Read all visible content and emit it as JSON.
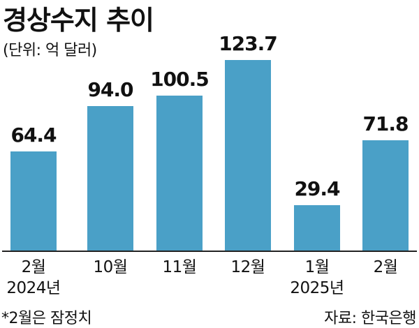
{
  "title": "경상수지 추이",
  "unit": "(단위: 억 달러)",
  "note": "*2월은 잠정치",
  "source": "자료: 한국은행",
  "colors": {
    "bar": "#4aa0c7",
    "text": "#111111",
    "axis": "#222222"
  },
  "chart_data": {
    "type": "bar",
    "title": "경상수지 추이",
    "subtitle": "(단위: 억 달러)",
    "categories": [
      "2024년 2월",
      "2024년 10월",
      "2024년 11월",
      "2024년 12월",
      "2025년 1월",
      "2025년 2월"
    ],
    "values": [
      64.4,
      94.0,
      100.5,
      123.7,
      29.4,
      71.8
    ],
    "value_labels": [
      "64.4",
      "94.0",
      "100.5",
      "123.7",
      "29.4",
      "71.8"
    ],
    "xlabel": "",
    "ylabel": "억 달러",
    "ylim": [
      0,
      130
    ],
    "grid": false,
    "legend": null,
    "annotations": [
      "*2월은 잠정치",
      "자료: 한국은행"
    ]
  },
  "x_labels": [
    {
      "line1": "2월",
      "line2": "2024년"
    },
    {
      "line1": "10월",
      "line2": ""
    },
    {
      "line1": "11월",
      "line2": ""
    },
    {
      "line1": "12월",
      "line2": ""
    },
    {
      "line1": "1월",
      "line2": "2025년"
    },
    {
      "line1": "2월",
      "line2": ""
    }
  ]
}
